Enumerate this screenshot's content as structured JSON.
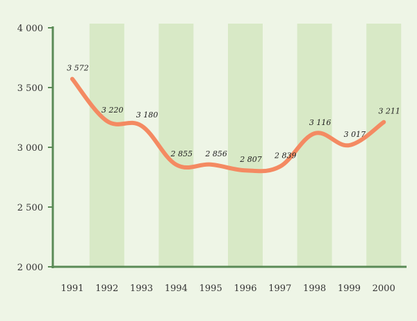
{
  "chart_data": {
    "type": "line",
    "title": "",
    "xlabel": "",
    "ylabel": "",
    "x": [
      "1991",
      "1992",
      "1993",
      "1994",
      "1995",
      "1996",
      "1997",
      "1998",
      "1999",
      "2000"
    ],
    "series": [
      {
        "values": [
          3572,
          3220,
          3180,
          2855,
          2856,
          2807,
          2839,
          3116,
          3017,
          3211
        ],
        "labels": [
          "3 572",
          "3 220",
          "3 180",
          "2 855",
          "2 856",
          "2 807",
          "2 839",
          "3 116",
          "3 017",
          "3 211"
        ]
      }
    ],
    "ylim": [
      2000,
      4000
    ],
    "yticks": [
      {
        "value": 2000,
        "label": "2 000"
      },
      {
        "value": 2500,
        "label": "2 500"
      },
      {
        "value": 3000,
        "label": "3 000"
      },
      {
        "value": 3500,
        "label": "3 500"
      },
      {
        "value": 4000,
        "label": "4 000"
      }
    ],
    "grid": false,
    "alternating_bands": true,
    "colors": {
      "background": "#eef5e6",
      "band": "#d8e9c6",
      "axis": "#5a8a56",
      "line": "#f48a62"
    }
  }
}
